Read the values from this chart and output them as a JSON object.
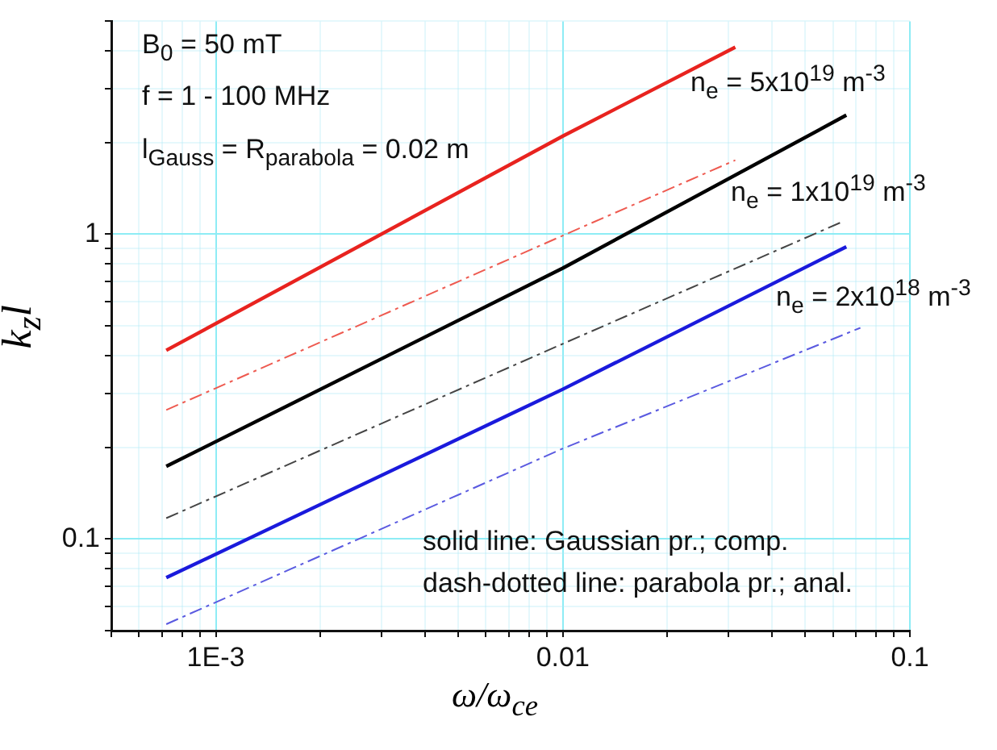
{
  "chart_data": {
    "type": "line",
    "xlabel": "ω/ω$_{ce}$",
    "ylabel": "k$_{z}$l",
    "log": "xy",
    "grid": true,
    "marker": "none",
    "xlim": [
      0.0005,
      0.1
    ],
    "ylim": [
      0.05,
      5
    ],
    "xticks": [
      {
        "value": 0.0005,
        "label": null
      },
      {
        "value": 0.0006,
        "label": null
      },
      {
        "value": 0.0007,
        "label": null
      },
      {
        "value": 0.0008,
        "label": null
      },
      {
        "value": 0.0009,
        "label": null
      },
      {
        "value": 0.001,
        "label": "1E-3"
      },
      {
        "value": 0.002,
        "label": null
      },
      {
        "value": 0.003,
        "label": null
      },
      {
        "value": 0.004,
        "label": null
      },
      {
        "value": 0.005,
        "label": null
      },
      {
        "value": 0.006,
        "label": null
      },
      {
        "value": 0.007,
        "label": null
      },
      {
        "value": 0.008,
        "label": null
      },
      {
        "value": 0.009,
        "label": null
      },
      0.01,
      {
        "value": 0.02,
        "label": null
      },
      {
        "value": 0.03,
        "label": null
      },
      {
        "value": 0.04,
        "label": null
      },
      {
        "value": 0.05,
        "label": null
      },
      {
        "value": 0.06,
        "label": null
      },
      {
        "value": 0.07,
        "label": null
      },
      {
        "value": 0.08,
        "label": null
      },
      {
        "value": 0.09,
        "label": null
      },
      0.1
    ],
    "yticks": [
      {
        "value": 0.05,
        "label": null
      },
      {
        "value": 0.06,
        "label": null
      },
      {
        "value": 0.07,
        "label": null
      },
      {
        "value": 0.08,
        "label": null
      },
      {
        "value": 0.09,
        "label": null
      },
      0.1,
      {
        "value": 0.2,
        "label": null
      },
      {
        "value": 0.3,
        "label": null
      },
      {
        "value": 0.4,
        "label": null
      },
      {
        "value": 0.5,
        "label": null
      },
      {
        "value": 0.6,
        "label": null
      },
      {
        "value": 0.7,
        "label": null
      },
      {
        "value": 0.8,
        "label": null
      },
      {
        "value": 0.9,
        "label": null
      },
      1,
      {
        "value": 2,
        "label": null
      },
      {
        "value": 3,
        "label": null
      },
      {
        "value": 4,
        "label": null
      },
      {
        "value": 5,
        "label": null
      }
    ],
    "series": [
      {
        "color": "#e8231f",
        "line_style": "solid",
        "x": [
          0.00072,
          0.01,
          0.0314
        ],
        "values": [
          0.416,
          2.1,
          4.11
        ]
      },
      {
        "color": "#ee5a50",
        "line_style": "dashed",
        "x": [
          0.00072,
          0.01,
          0.0314
        ],
        "values": [
          0.265,
          0.99,
          1.75
        ]
      },
      {
        "color": "#000000",
        "line_style": "solid",
        "x": [
          0.00072,
          0.01,
          0.0656
        ],
        "values": [
          0.173,
          0.774,
          2.46
        ]
      },
      {
        "color": "#444444",
        "line_style": "dashed",
        "x": [
          0.00072,
          0.01,
          0.064
        ],
        "values": [
          0.117,
          0.437,
          1.1
        ]
      },
      {
        "color": "#1a1adc",
        "line_style": "solid",
        "x": [
          0.00072,
          0.01,
          0.0656
        ],
        "values": [
          0.0746,
          0.31,
          0.91
        ]
      },
      {
        "color": "#5a5ae0",
        "line_style": "dashed",
        "x": [
          0.00072,
          0.01,
          0.072
        ],
        "values": [
          0.0525,
          0.198,
          0.493
        ]
      }
    ],
    "annotations": [
      "B$_{0}$ = 50 mT",
      "f = 1 - 100 MHz",
      "l$_{Gauss}$ = R$_{parabola}$ = 0.02 m",
      "solid line: Gaussian pr.; comp.",
      "dash-dotted line: parabola pr.; anal.",
      "n$_{e}$ = 5x10$^{19}$ m$^{-3}$",
      "n$_{e}$ = 1x10$^{19}$ m$^{-3}$",
      "n$_{e}$ = 2x10$^{18}$ m$^{-3}$"
    ]
  }
}
